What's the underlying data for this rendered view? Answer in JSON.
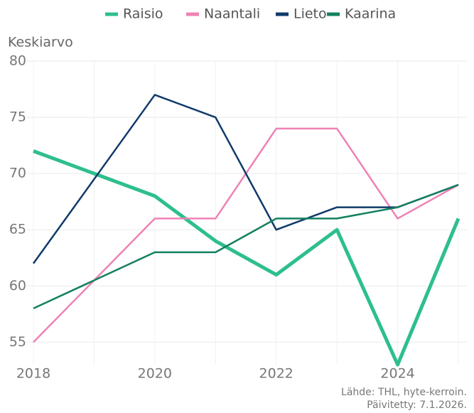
{
  "chart_data": {
    "type": "line",
    "y_label": "Keskiarvo",
    "caption": [
      "Lähde: THL, hyte-kerroin.",
      "Päivitetty: 7.1.2026."
    ],
    "x": [
      2018,
      2019,
      2020,
      2021,
      2022,
      2023,
      2024,
      2025
    ],
    "series": [
      {
        "name": "Raisio",
        "color": "#2dbf8c",
        "width": 5,
        "values": [
          72,
          70,
          68,
          64,
          61,
          65,
          53,
          66
        ]
      },
      {
        "name": "Naantali",
        "color": "#ee82b5",
        "width": 2.5,
        "values": [
          55,
          60.5,
          66,
          66,
          74,
          74,
          66,
          69
        ]
      },
      {
        "name": "Lieto",
        "color": "#103a6b",
        "width": 2.5,
        "values": [
          62,
          69.5,
          77,
          75,
          65,
          67,
          67,
          69
        ]
      },
      {
        "name": "Kaarina",
        "color": "#138060",
        "width": 2.5,
        "values": [
          58,
          60.5,
          63,
          63,
          66,
          66,
          67,
          69
        ]
      }
    ],
    "xlim": [
      2018,
      2025
    ],
    "xticks": [
      2018,
      2020,
      2022,
      2024
    ],
    "ylim": [
      53,
      80
    ],
    "yticks": [
      55,
      60,
      65,
      70,
      75,
      80
    ],
    "grid": true,
    "legend": "top"
  }
}
